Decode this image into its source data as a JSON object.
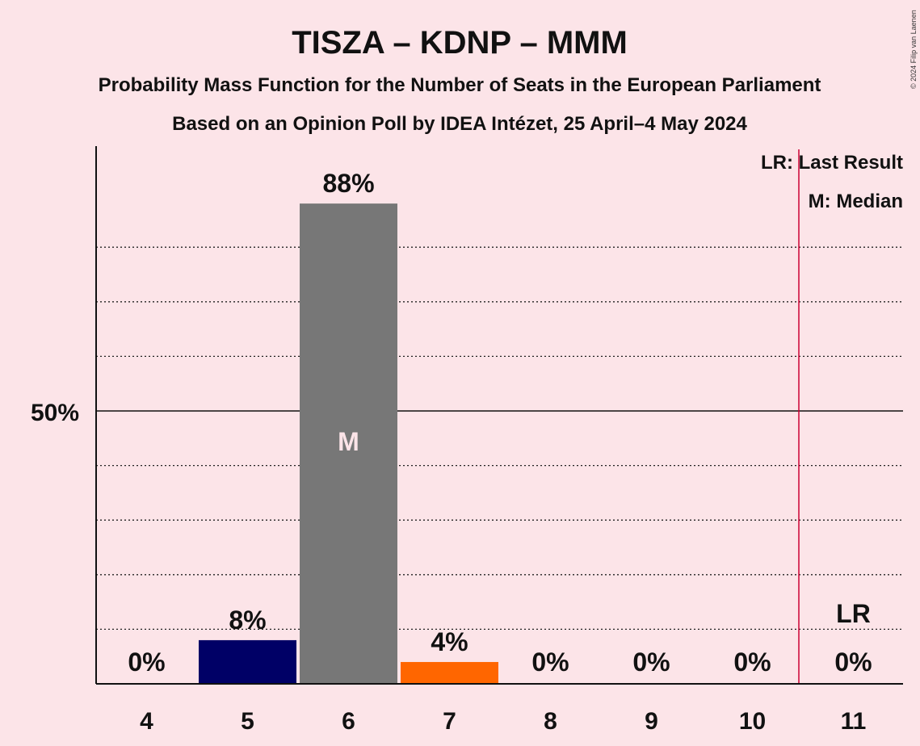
{
  "chart_data": {
    "type": "bar",
    "title": "TISZA – KDNP – MMM",
    "subtitle1": "Probability Mass Function for the Number of Seats in the European Parliament",
    "subtitle2": "Based on an Opinion Poll by IDEA Intézet, 25 April–4 May 2024",
    "categories": [
      "4",
      "5",
      "6",
      "7",
      "8",
      "9",
      "10",
      "11"
    ],
    "values": [
      0,
      8,
      88,
      4,
      0,
      0,
      0,
      0
    ],
    "value_labels": [
      "0%",
      "8%",
      "88%",
      "4%",
      "0%",
      "0%",
      "0%",
      "0%"
    ],
    "bar_colors": [
      "#000066",
      "#000066",
      "#777777",
      "#ff6600",
      "#000066",
      "#000066",
      "#000066",
      "#000066"
    ],
    "ylim": [
      0,
      100
    ],
    "ytick_label": "50%",
    "ytick_value": 50,
    "gridlines": [
      10,
      20,
      30,
      40,
      60,
      70,
      80
    ],
    "median_category": "6",
    "median_marker": "M",
    "last_result_category": "11",
    "last_result_marker": "LR",
    "legend": {
      "last_result": "LR: Last Result",
      "median": "M: Median",
      "placement": "top-right"
    },
    "colors": {
      "background": "#fce4e8",
      "lr_line": "#cc0033"
    }
  },
  "copyright": "© 2024 Filip van Laenen"
}
